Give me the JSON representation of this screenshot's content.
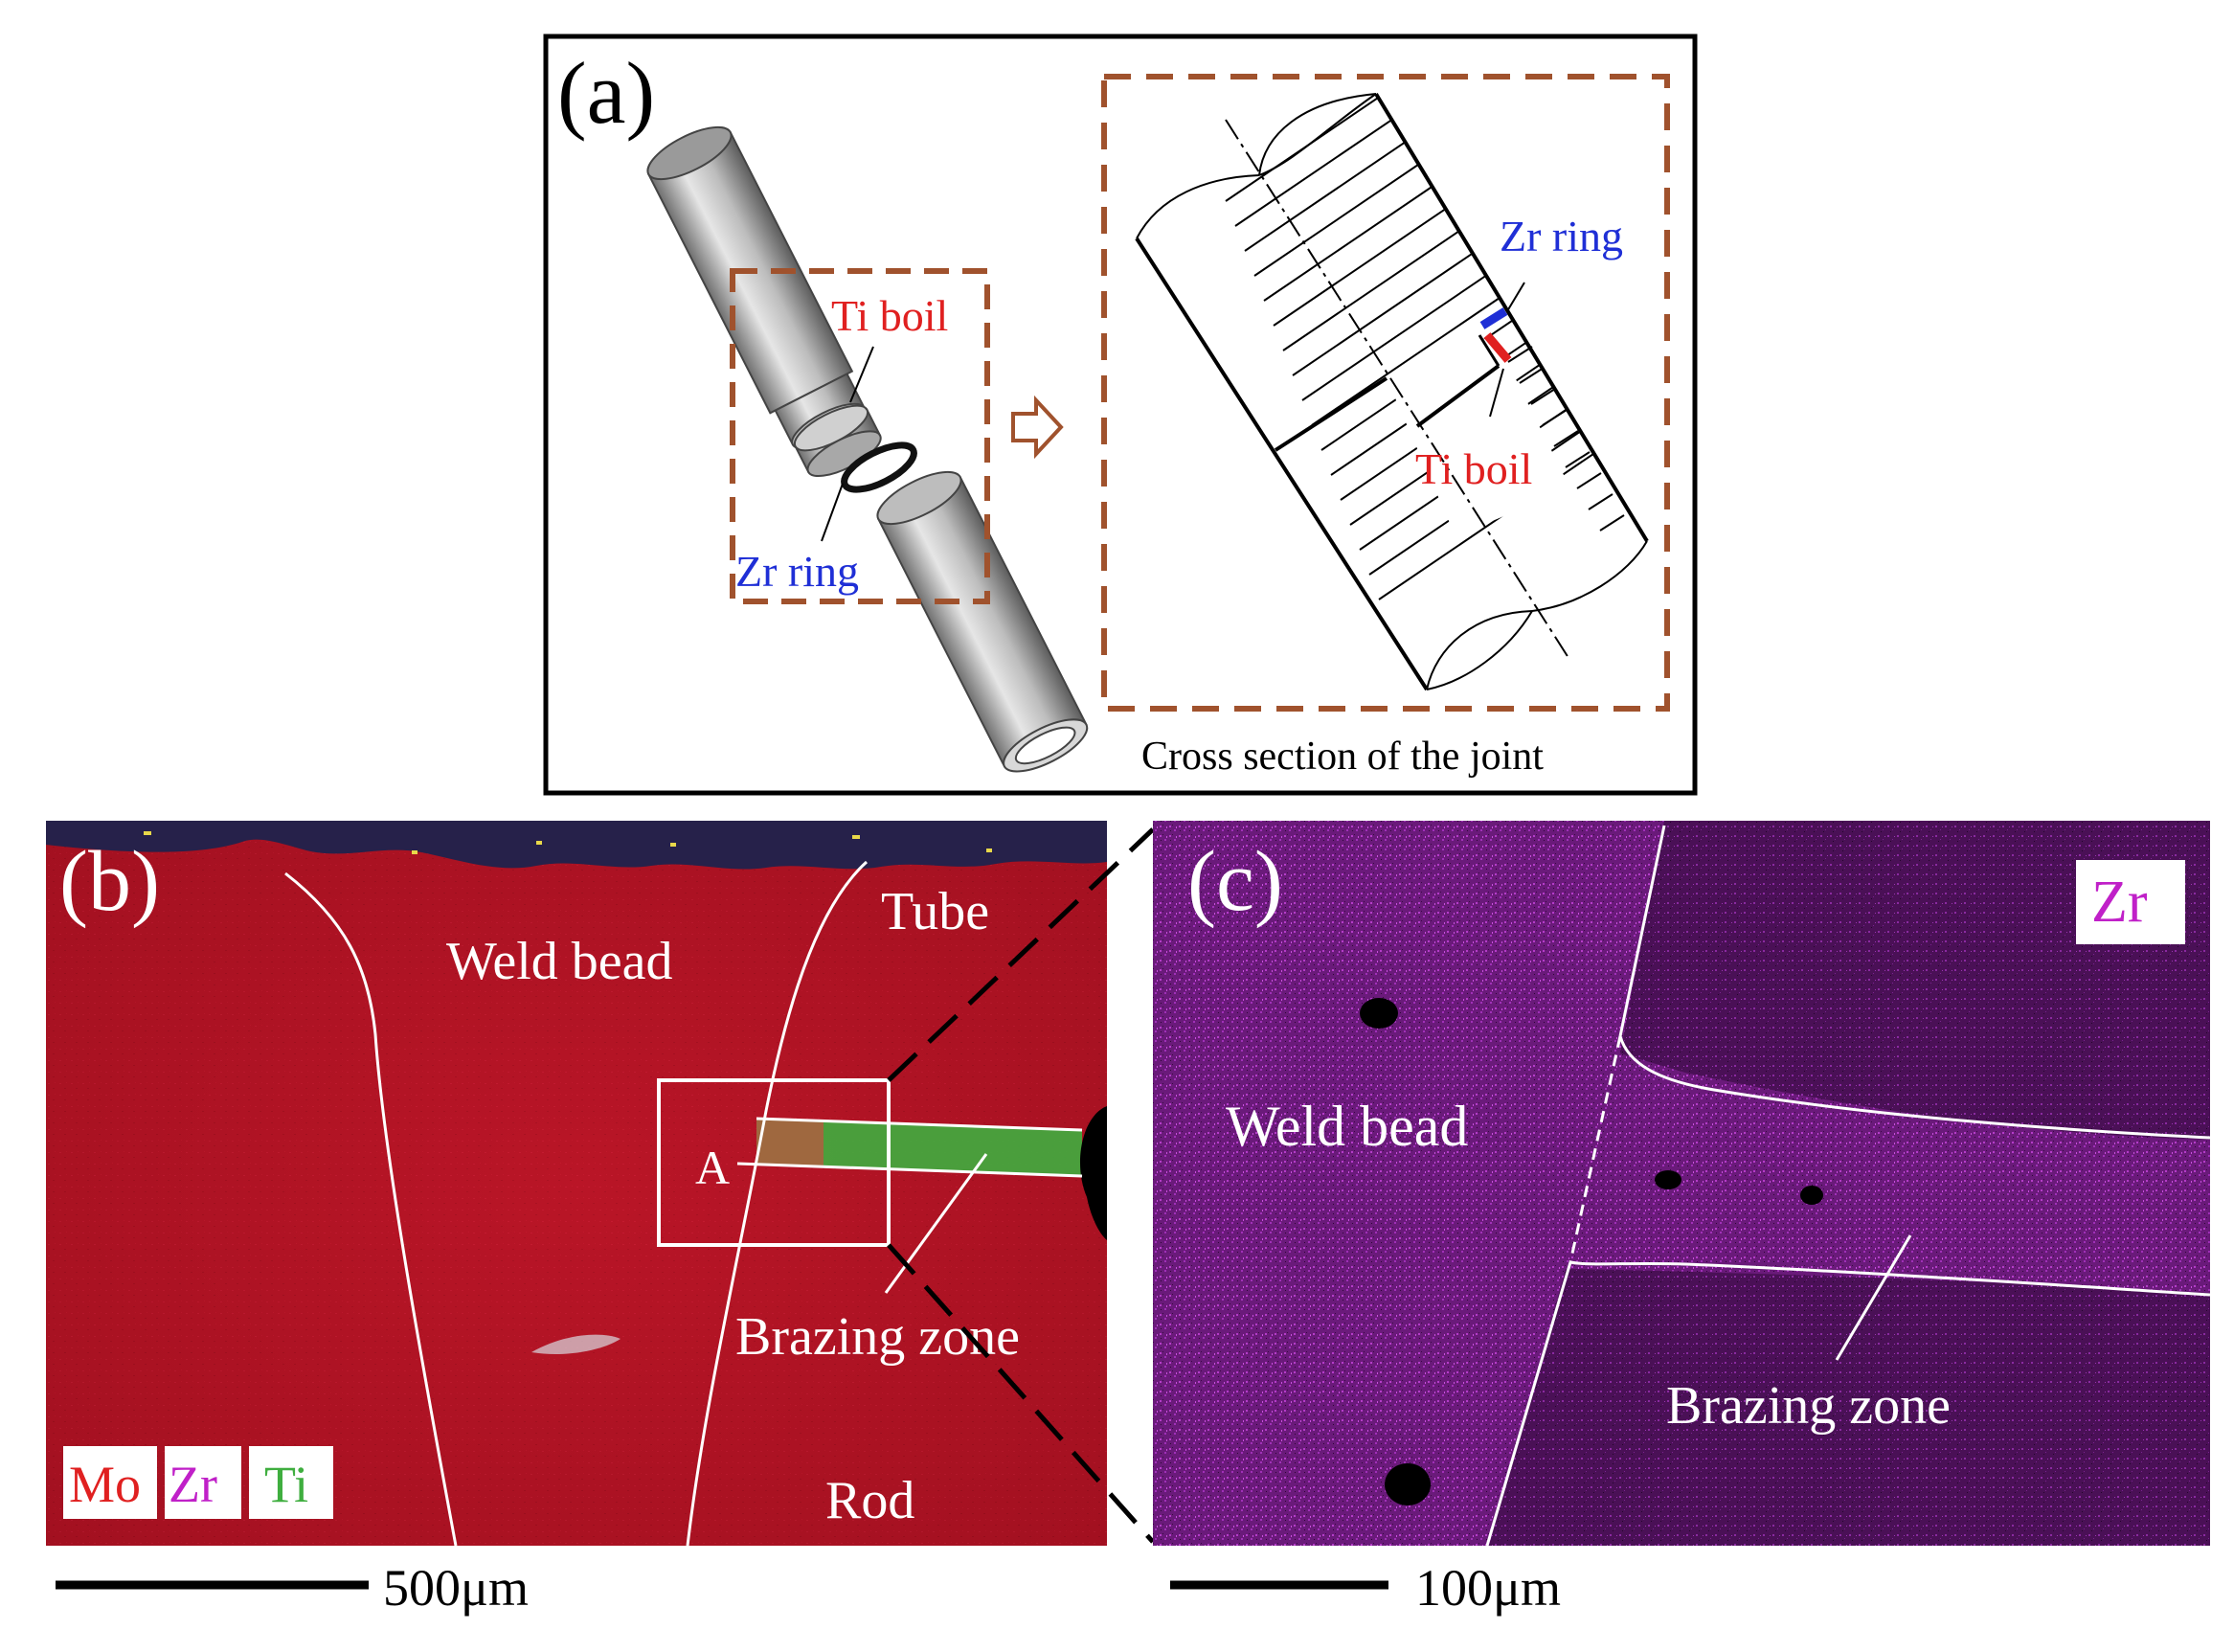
{
  "panel_a": {
    "letter": "(a)",
    "ti_foil_left": "Ti boil",
    "zr_ring_left": "Zr ring",
    "zr_ring_right": "Zr ring",
    "ti_foil_right": "Ti boil",
    "caption": "Cross section of the joint"
  },
  "panel_b": {
    "letter": "(b)",
    "tube": "Tube",
    "weld_bead": "Weld bead",
    "point_a": "A",
    "brazing_zone": "Brazing zone",
    "rod": "Rod",
    "legend": [
      "Mo",
      "Zr",
      "Ti"
    ],
    "scale_bar": "500μm"
  },
  "panel_c": {
    "letter": "(c)",
    "element": "Zr",
    "weld_bead": "Weld bead",
    "brazing_zone": "Brazing zone",
    "scale_bar": "100μm"
  },
  "colors": {
    "dashed_box": "#a0522d",
    "ti_label": "#e02020",
    "zr_label": "#1f2fd6",
    "mo_map": "#b01020",
    "zr_map": "#6a1a7a",
    "ti_map": "#3fae3f"
  }
}
